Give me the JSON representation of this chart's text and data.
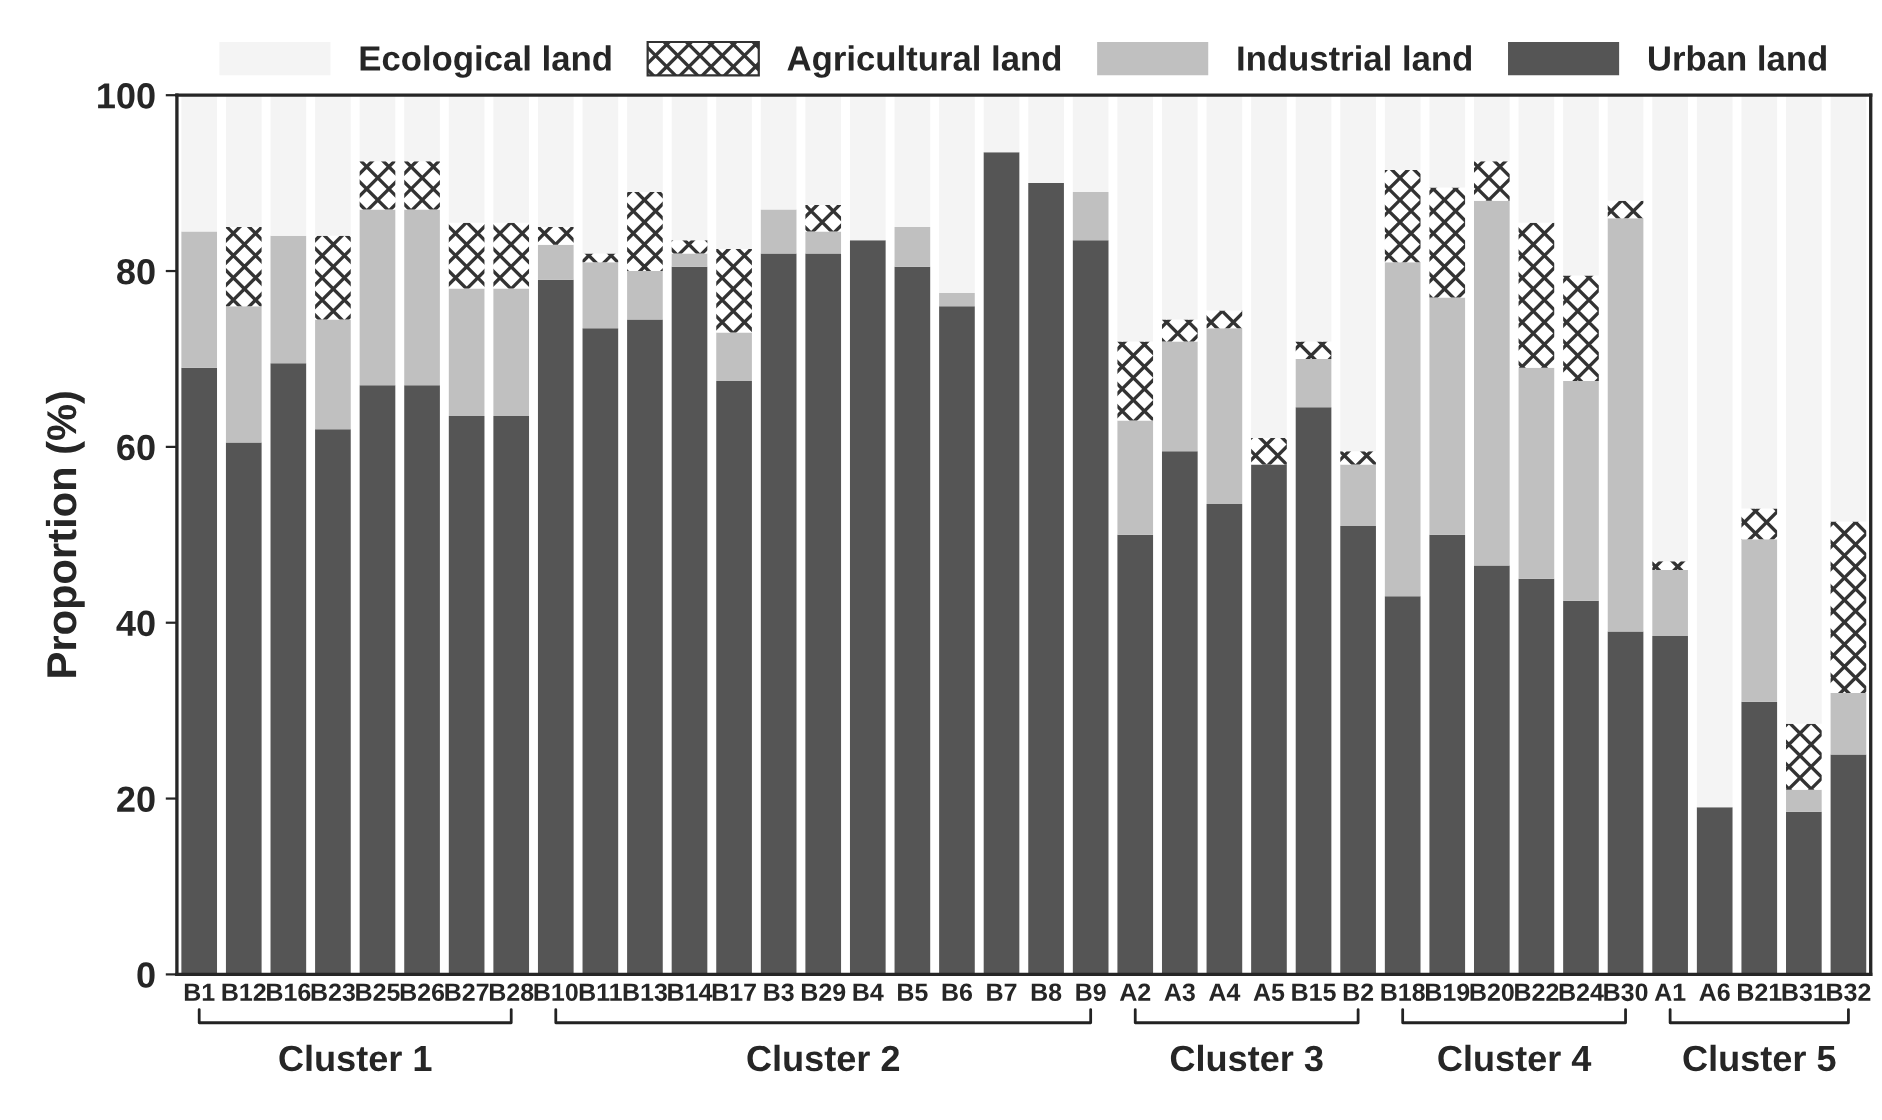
{
  "chart_data": {
    "type": "bar",
    "stacked": true,
    "ylabel": "Proportion (%)",
    "ylim": [
      0,
      100
    ],
    "yticks": [
      0,
      20,
      40,
      60,
      80,
      100
    ],
    "grid": false,
    "legend": "top",
    "categories": [
      "B1",
      "B12",
      "B16",
      "B23",
      "B25",
      "B26",
      "B27",
      "B28",
      "B10",
      "B11",
      "B13",
      "B14",
      "B17",
      "B3",
      "B29",
      "B4",
      "B5",
      "B6",
      "B7",
      "B8",
      "B9",
      "A2",
      "A3",
      "A4",
      "A5",
      "B15",
      "B2",
      "B18",
      "B19",
      "B20",
      "B22",
      "B24",
      "B30",
      "A1",
      "A6",
      "B21",
      "B31",
      "B32"
    ],
    "series": [
      {
        "name": "Urban land",
        "color": "#555555",
        "values": [
          69,
          60.5,
          69.5,
          62,
          67,
          67,
          63.5,
          63.5,
          79,
          73.5,
          74.5,
          80.5,
          67.5,
          82,
          82,
          83.5,
          80.5,
          76,
          93.5,
          90,
          83.5,
          50,
          59.5,
          53.5,
          58,
          64.5,
          51,
          43,
          50,
          46.5,
          45,
          42.5,
          39,
          38.5,
          19,
          31,
          18.5,
          25
        ]
      },
      {
        "name": "Industrial land",
        "color": "#c0c0c0",
        "values": [
          15.5,
          15.5,
          14.5,
          12.5,
          20,
          20,
          14.5,
          14.5,
          4,
          7.5,
          5.5,
          1.5,
          5.5,
          5,
          2.5,
          0,
          4.5,
          1.5,
          0,
          0,
          5.5,
          13,
          12.5,
          20,
          0,
          5.5,
          7,
          38,
          27,
          41.5,
          24,
          25,
          47,
          7.5,
          0,
          18.5,
          2.5,
          7
        ]
      },
      {
        "name": "Agricultural land",
        "color": "#ffffff",
        "values": [
          0,
          9,
          0,
          9.5,
          5.5,
          5.5,
          7.5,
          7.5,
          2,
          1,
          9,
          1.5,
          9.5,
          0,
          3,
          0,
          0,
          0,
          0,
          0,
          0,
          9,
          2.5,
          2,
          3,
          2,
          1.5,
          10.5,
          12.5,
          4.5,
          16.5,
          12,
          2,
          1,
          0,
          3.5,
          7.5,
          19.5
        ]
      },
      {
        "name": "Ecological land",
        "color": "#f4f4f4",
        "values": [
          15.5,
          15,
          16,
          16,
          7.5,
          7.5,
          14.5,
          14.5,
          15,
          18,
          11,
          16.5,
          17.5,
          13,
          12.5,
          16.5,
          15,
          22.5,
          6.5,
          10,
          11,
          28,
          25.5,
          24.5,
          39,
          28,
          40.5,
          8.5,
          10.5,
          7.5,
          14.5,
          20.5,
          12,
          53,
          81,
          47,
          71.5,
          48.5
        ]
      }
    ],
    "annotations": [
      "Cluster 1",
      "Cluster 2",
      "Cluster 3",
      "Cluster 4",
      "Cluster 5"
    ]
  }
}
